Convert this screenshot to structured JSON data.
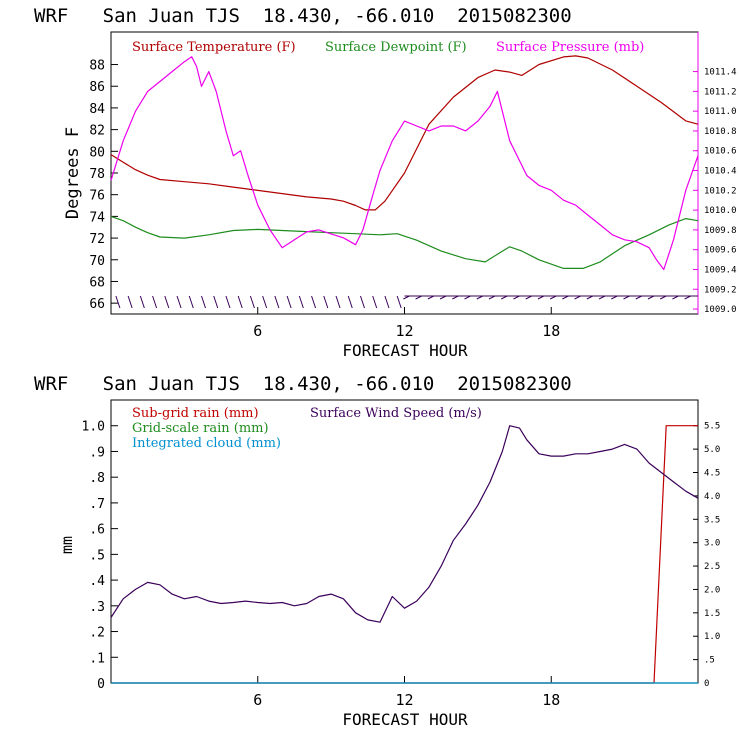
{
  "colors": {
    "temperature": "#b00000",
    "dewpoint": "#1e8c1e",
    "pressure": "#ee00ee",
    "subgrid_rain": "#c00000",
    "gridscale_rain": "#1e8c1e",
    "cloud": "#0090d0",
    "wind": "#3a005a",
    "axis": "#000000"
  },
  "chart_data": [
    {
      "type": "line",
      "title": "WRF   San Juan TJS  18.430, -66.010  2015082300",
      "xlabel": "FORECAST HOUR",
      "ylabel": "Degrees F",
      "xlim": [
        0,
        24
      ],
      "ylim": [
        65,
        91
      ],
      "y2lim": [
        1008.95,
        1011.8
      ],
      "x_ticks": [
        6,
        12,
        18
      ],
      "y_ticks": [
        66,
        68,
        70,
        72,
        74,
        76,
        78,
        80,
        82,
        84,
        86,
        88
      ],
      "y2_ticks": [
        "1009.0",
        "1009.2",
        "1009.4",
        "1009.6",
        "1009.8",
        "1010.0",
        "1010.2",
        "1010.4",
        "1010.6",
        "1010.8",
        "1011.0",
        "1011.2",
        "1011.4"
      ],
      "legend": [
        "Surface Temperature (F)",
        "Surface Dewpoint (F)",
        "Surface Pressure (mb)"
      ],
      "legend_placement": "top",
      "series": [
        {
          "name": "Surface Temperature (F)",
          "axis": "left",
          "x": [
            0,
            0.5,
            1,
            1.5,
            2,
            3,
            4,
            5,
            6,
            7,
            8,
            9,
            9.5,
            10,
            10.4,
            10.8,
            11.2,
            12,
            13,
            14,
            15,
            15.7,
            16.3,
            16.8,
            17.5,
            18.5,
            19,
            19.5,
            20.5,
            21.5,
            22.5,
            23.5,
            24
          ],
          "y": [
            79.7,
            79.0,
            78.3,
            77.8,
            77.4,
            77.2,
            77.0,
            76.7,
            76.4,
            76.1,
            75.8,
            75.6,
            75.4,
            75.0,
            74.6,
            74.6,
            75.4,
            78.0,
            82.5,
            85.0,
            86.8,
            87.5,
            87.3,
            87.0,
            88.0,
            88.7,
            88.8,
            88.6,
            87.5,
            86.0,
            84.5,
            82.8,
            82.5
          ]
        },
        {
          "name": "Surface Dewpoint (F)",
          "axis": "left",
          "x": [
            0,
            0.5,
            1,
            1.5,
            2,
            3,
            4,
            5,
            6,
            7,
            8,
            9,
            10,
            11,
            11.7,
            12.5,
            13.5,
            14.5,
            15.3,
            15.8,
            16.3,
            16.8,
            17.5,
            18.5,
            19.3,
            20,
            21,
            22,
            22.8,
            23.5,
            24
          ],
          "y": [
            74.0,
            73.6,
            73.0,
            72.5,
            72.1,
            72.0,
            72.3,
            72.7,
            72.8,
            72.7,
            72.6,
            72.5,
            72.4,
            72.3,
            72.4,
            71.8,
            70.8,
            70.1,
            69.8,
            70.5,
            71.2,
            70.8,
            70.0,
            69.2,
            69.2,
            69.8,
            71.3,
            72.3,
            73.2,
            73.8,
            73.6
          ]
        },
        {
          "name": "Surface Pressure (mb)",
          "axis": "right",
          "x": [
            0,
            0.5,
            1,
            1.5,
            2,
            2.5,
            3,
            3.3,
            3.5,
            3.7,
            4,
            4.3,
            4.7,
            5,
            5.3,
            5.6,
            6,
            6.5,
            7,
            7.5,
            8,
            8.5,
            9,
            9.5,
            10,
            10.3,
            10.7,
            11,
            11.5,
            12,
            12.5,
            13,
            13.5,
            14,
            14.5,
            15,
            15.5,
            15.8,
            16,
            16.3,
            16.7,
            17,
            17.5,
            18,
            18.5,
            19,
            19.5,
            20,
            20.5,
            21,
            21.5,
            22,
            22.3,
            22.6,
            23,
            23.5,
            24
          ],
          "y": [
            1010.3,
            1010.7,
            1011.0,
            1011.2,
            1011.3,
            1011.4,
            1011.5,
            1011.55,
            1011.45,
            1011.25,
            1011.4,
            1011.2,
            1010.8,
            1010.55,
            1010.6,
            1010.35,
            1010.05,
            1009.8,
            1009.62,
            1009.7,
            1009.78,
            1009.8,
            1009.76,
            1009.72,
            1009.65,
            1009.8,
            1010.15,
            1010.4,
            1010.7,
            1010.9,
            1010.85,
            1010.8,
            1010.85,
            1010.85,
            1010.8,
            1010.9,
            1011.05,
            1011.2,
            1011.0,
            1010.7,
            1010.5,
            1010.35,
            1010.25,
            1010.2,
            1010.1,
            1010.05,
            1009.95,
            1009.85,
            1009.75,
            1009.7,
            1009.68,
            1009.62,
            1009.5,
            1009.4,
            1009.7,
            1010.2,
            1010.55
          ]
        }
      ]
    },
    {
      "type": "line",
      "title": "WRF   San Juan TJS  18.430, -66.010  2015082300",
      "xlabel": "FORECAST HOUR",
      "ylabel": "mm",
      "xlim": [
        0,
        24
      ],
      "ylim": [
        0,
        1.1
      ],
      "y2lim": [
        0,
        6.05
      ],
      "x_ticks": [
        6,
        12,
        18
      ],
      "y_ticks": [
        {
          "v": 0,
          "label": "0"
        },
        {
          "v": 0.1,
          "label": ".1"
        },
        {
          "v": 0.2,
          "label": ".2"
        },
        {
          "v": 0.3,
          "label": ".3"
        },
        {
          "v": 0.4,
          "label": ".4"
        },
        {
          "v": 0.5,
          "label": ".5"
        },
        {
          "v": 0.6,
          "label": ".6"
        },
        {
          "v": 0.7,
          "label": ".7"
        },
        {
          "v": 0.8,
          "label": ".8"
        },
        {
          "v": 0.9,
          "label": ".9"
        },
        {
          "v": 1.0,
          "label": "1.0"
        }
      ],
      "y2_ticks": [
        "0",
        ".5",
        "1.0",
        "1.5",
        "2.0",
        "2.5",
        "3.0",
        "3.5",
        "4.0",
        "4.5",
        "5.0",
        "5.5"
      ],
      "legend": [
        "Sub-grid rain (mm)",
        "Grid-scale rain (mm)",
        "Integrated cloud (mm)",
        "Surface Wind Speed (m/s)"
      ],
      "legend_placement": "top-left",
      "series": [
        {
          "name": "Sub-grid rain (mm)",
          "axis": "left",
          "x": [
            0,
            22.2,
            22.7,
            23.5,
            24
          ],
          "y": [
            0,
            0,
            1.0,
            1.0,
            1.0
          ]
        },
        {
          "name": "Grid-scale rain (mm)",
          "axis": "left",
          "x": [
            0,
            24
          ],
          "y": [
            0,
            0
          ]
        },
        {
          "name": "Integrated cloud (mm)",
          "axis": "left",
          "x": [
            0,
            24
          ],
          "y": [
            0,
            0
          ]
        },
        {
          "name": "Surface Wind Speed (m/s)",
          "axis": "right",
          "x": [
            0,
            0.5,
            1,
            1.5,
            2,
            2.5,
            3,
            3.5,
            4,
            4.5,
            5,
            5.5,
            6,
            6.5,
            7,
            7.5,
            8,
            8.5,
            9,
            9.5,
            10,
            10.5,
            11,
            11.5,
            12,
            12.5,
            13,
            13.5,
            14,
            14.5,
            15,
            15.5,
            16,
            16.3,
            16.7,
            17,
            17.5,
            18,
            18.5,
            19,
            19.5,
            20,
            20.5,
            21,
            21.5,
            22,
            22.5,
            23,
            23.5,
            24
          ],
          "y": [
            1.4,
            1.8,
            2.0,
            2.15,
            2.1,
            1.9,
            1.8,
            1.85,
            1.75,
            1.7,
            1.72,
            1.75,
            1.72,
            1.7,
            1.72,
            1.65,
            1.7,
            1.85,
            1.9,
            1.8,
            1.5,
            1.35,
            1.3,
            1.85,
            1.6,
            1.75,
            2.05,
            2.5,
            3.05,
            3.4,
            3.8,
            4.3,
            4.95,
            5.5,
            5.45,
            5.2,
            4.9,
            4.85,
            4.85,
            4.9,
            4.9,
            4.95,
            5.0,
            5.1,
            5.0,
            4.7,
            4.5,
            4.3,
            4.1,
            3.95
          ]
        }
      ]
    }
  ]
}
